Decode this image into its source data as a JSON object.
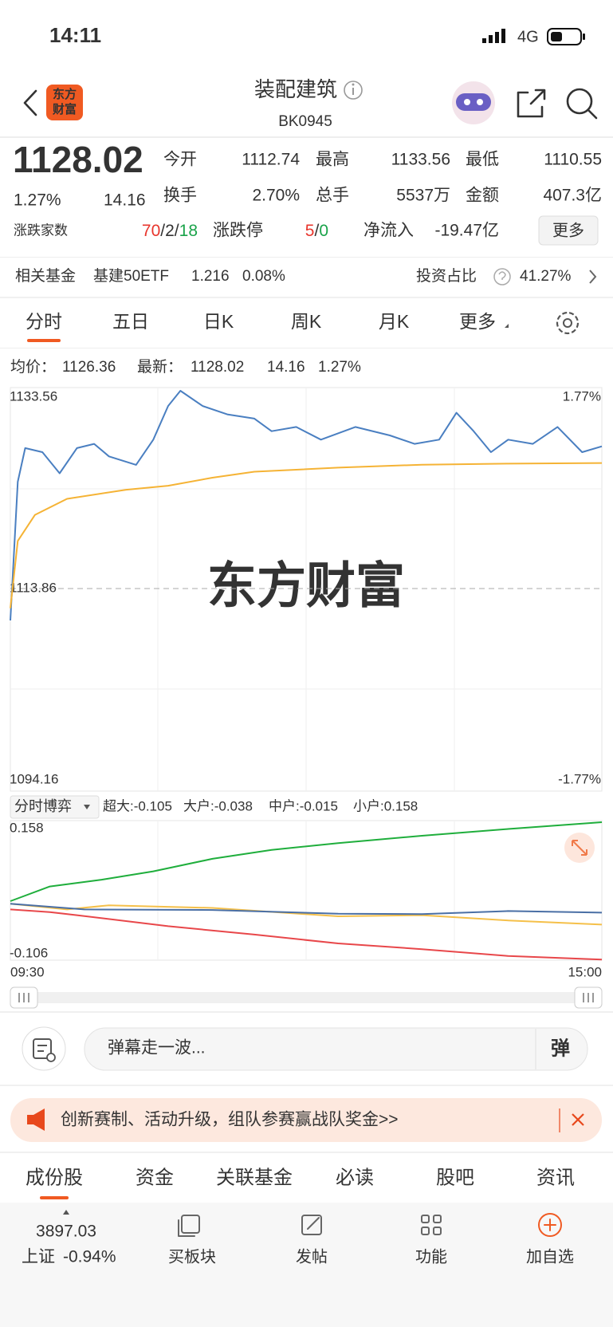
{
  "status_bar": {
    "time": "14:11",
    "network": "4G"
  },
  "header": {
    "logo": [
      "东方",
      "财富"
    ],
    "title": "装配建筑",
    "code": "BK0945"
  },
  "quote": {
    "price": "1128.02",
    "change_pct": "1.27%",
    "change": "14.16",
    "stats": [
      [
        {
          "label": "今开",
          "value": "1112.74",
          "color": "#1aa34a"
        },
        {
          "label": "最高",
          "value": "1133.56",
          "color": "#e8352c"
        },
        {
          "label": "最低",
          "value": "1110.55",
          "color": "#1aa34a"
        }
      ],
      [
        {
          "label": "换手",
          "value": "2.70%",
          "color": "#333333"
        },
        {
          "label": "总手",
          "value": "5537万",
          "color": "#333333"
        },
        {
          "label": "金额",
          "value": "407.3亿",
          "color": "#333333"
        }
      ]
    ],
    "breadth": {
      "label": "涨跌家数",
      "parts": [
        {
          "text": "70",
          "color": "#e8352c"
        },
        {
          "text": "/",
          "color": "#333333"
        },
        {
          "text": "2",
          "color": "#333333"
        },
        {
          "text": "/",
          "color": "#333333"
        },
        {
          "text": "18",
          "color": "#1aa34a"
        }
      ]
    },
    "limit": {
      "label": "涨跌停",
      "parts": [
        {
          "text": "5",
          "color": "#e8352c"
        },
        {
          "text": "/",
          "color": "#333333"
        },
        {
          "text": "0",
          "color": "#1aa34a"
        }
      ]
    },
    "net_inflow": {
      "label": "净流入",
      "value": "-19.47亿",
      "color": "#1aa34a"
    },
    "more_button": "更多"
  },
  "fund": {
    "label": "相关基金",
    "name": "基建50ETF",
    "price": "1.216",
    "change": "0.08%",
    "ratio_label": "投资占比",
    "ratio": "41.27%"
  },
  "tabs": {
    "items": [
      "分时",
      "五日",
      "日K",
      "周K",
      "月K",
      "更多"
    ],
    "active": 0
  },
  "watermark": "东方财富",
  "chart_data": [
    {
      "type": "line",
      "legend": [
        {
          "text": "均价：",
          "color": "#f0a830"
        },
        {
          "text": "1126.36",
          "color": "#f0a830"
        },
        {
          "text": "最新：",
          "color": "#e8352c"
        },
        {
          "text": "1128.02",
          "color": "#e8352c"
        },
        {
          "text": "14.16",
          "color": "#e8352c"
        },
        {
          "text": "1.27%",
          "color": "#e8352c"
        }
      ],
      "xlim": [
        0,
        240
      ],
      "ylim": [
        1094.16,
        1133.56
      ],
      "yticks": [
        1094.16,
        1113.86,
        1133.56
      ],
      "ytick_colors": [
        "#1aa34a",
        "#888888",
        "#e8352c"
      ],
      "y2lim": [
        -1.77,
        1.77
      ],
      "y2ticks": [
        {
          "value": -1.77,
          "label": "-1.77%"
        },
        {
          "value": 1.77,
          "label": "1.77%"
        }
      ],
      "series": [
        {
          "color": "#4a7fc1",
          "x": [
            0,
            3,
            6,
            13,
            20,
            27,
            34,
            40,
            51,
            58,
            64,
            69,
            78,
            88,
            99,
            106,
            116,
            126,
            140,
            154,
            164,
            174,
            181,
            188,
            195,
            202,
            212,
            222,
            232,
            240
          ],
          "values": [
            1110.68,
            1124.5,
            1127.85,
            1127.44,
            1125.34,
            1127.85,
            1128.27,
            1127.02,
            1126.18,
            1128.69,
            1132.04,
            1133.56,
            1132.04,
            1131.21,
            1130.79,
            1129.53,
            1129.95,
            1128.69,
            1129.95,
            1129.11,
            1128.27,
            1128.69,
            1131.37,
            1129.53,
            1127.44,
            1128.69,
            1128.27,
            1129.95,
            1127.44,
            1128.02
          ]
        },
        {
          "color": "#f5b335",
          "x": [
            0,
            3,
            10,
            23,
            47,
            64,
            82,
            99,
            133,
            167,
            202,
            240
          ],
          "values": [
            1111.9,
            1118.6,
            1121.2,
            1122.8,
            1123.7,
            1124.1,
            1124.9,
            1125.5,
            1125.9,
            1126.2,
            1126.3,
            1126.36
          ]
        }
      ]
    },
    {
      "type": "line",
      "selector": "分时博弈",
      "legend": [
        {
          "text": "超大:-0.105",
          "color": "#e8352c"
        },
        {
          "text": "大户:-0.038",
          "color": "#f0a830"
        },
        {
          "text": "中户:-0.015",
          "color": "#4a6fa5"
        },
        {
          "text": "小户:0.158",
          "color": "#1aa34a"
        }
      ],
      "xlim": [
        0,
        240
      ],
      "xticks": [
        {
          "value": 0,
          "label": "09:30"
        },
        {
          "value": 240,
          "label": "15:00"
        }
      ],
      "ylim": [
        -0.106,
        0.158
      ],
      "yticks": [
        -0.106,
        0.158
      ],
      "series": [
        {
          "color": "#1fae3c",
          "x": [
            0,
            16,
            37,
            58,
            82,
            106,
            133,
            167,
            202,
            240
          ],
          "values": [
            0.007,
            0.035,
            0.048,
            0.064,
            0.088,
            0.105,
            0.118,
            0.132,
            0.145,
            0.158
          ]
        },
        {
          "color": "#e8474a",
          "x": [
            0,
            16,
            27,
            64,
            99,
            133,
            167,
            202,
            240
          ],
          "values": [
            -0.009,
            -0.014,
            -0.02,
            -0.041,
            -0.057,
            -0.074,
            -0.085,
            -0.098,
            -0.105
          ]
        },
        {
          "color": "#f5c04a",
          "x": [
            0,
            23,
            40,
            82,
            133,
            167,
            202,
            240
          ],
          "values": [
            0.002,
            -0.009,
            -0.001,
            -0.006,
            -0.022,
            -0.02,
            -0.03,
            -0.038
          ]
        },
        {
          "color": "#4a6fa5",
          "x": [
            0,
            30,
            82,
            133,
            167,
            202,
            240
          ],
          "values": [
            0.002,
            -0.009,
            -0.01,
            -0.017,
            -0.018,
            -0.012,
            -0.015
          ]
        }
      ]
    }
  ],
  "danmu": {
    "placeholder": "弹幕走一波...",
    "button": "弹"
  },
  "banner": {
    "text": "创新赛制、活动升级，组队参赛赢战队奖金>>"
  },
  "bottom_tabs": {
    "items": [
      "成份股",
      "资金",
      "关联基金",
      "必读",
      "股吧",
      "资讯"
    ],
    "active": 0
  },
  "nav": {
    "index": {
      "value": "3897.03",
      "name": "上证",
      "change": "-0.94%"
    },
    "items": [
      "买板块",
      "发帖",
      "功能",
      "加自选"
    ]
  }
}
